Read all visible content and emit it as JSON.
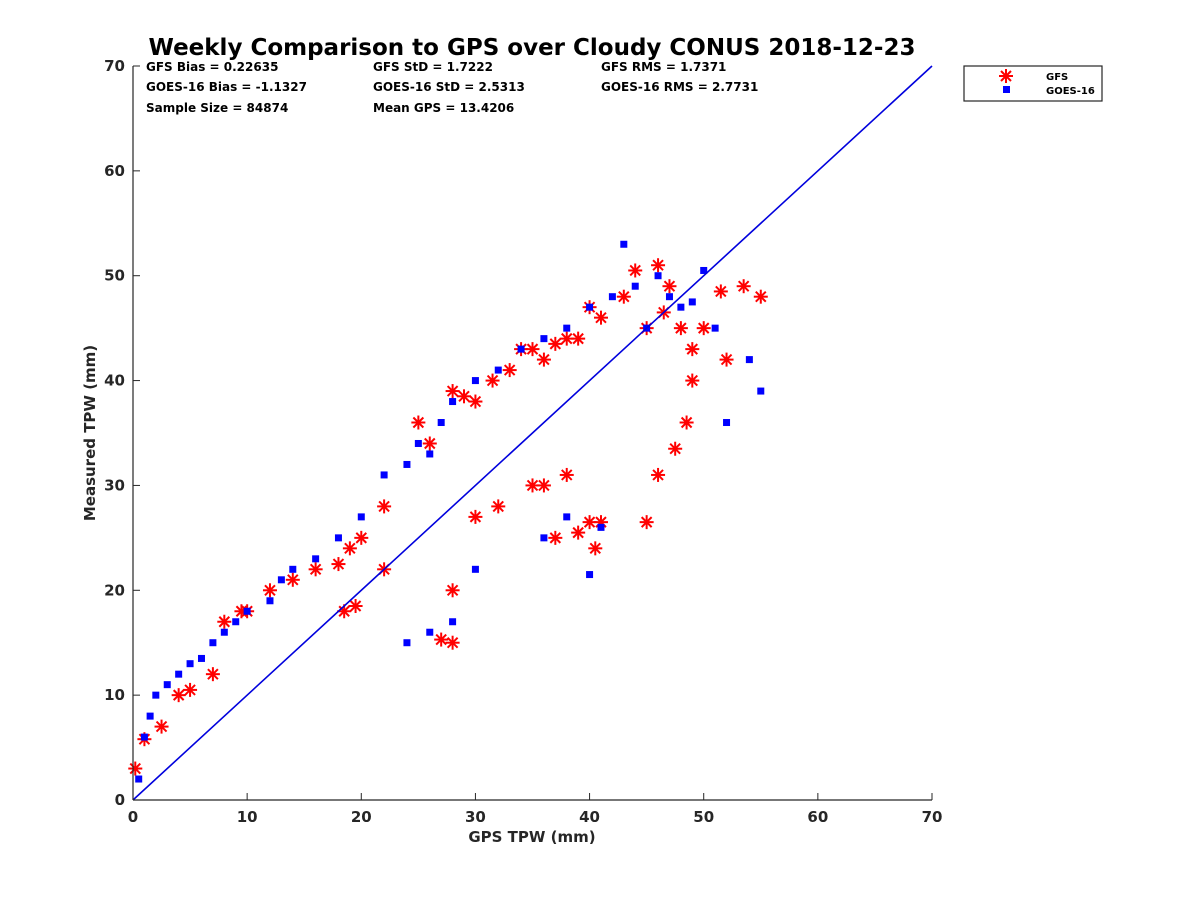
{
  "chart_data": {
    "type": "scatter",
    "title": "Weekly Comparison to GPS over Cloudy CONUS 2018-12-23",
    "xlabel": "GPS TPW (mm)",
    "ylabel": "Measured TPW (mm)",
    "xlim": [
      0,
      70
    ],
    "ylim": [
      0,
      70
    ],
    "xticks": [
      "0",
      "10",
      "20",
      "30",
      "40",
      "50",
      "60",
      "70"
    ],
    "yticks": [
      "0",
      "10",
      "20",
      "30",
      "40",
      "50",
      "60",
      "70"
    ],
    "grid": false,
    "legend_position": "outside-top-right",
    "stats": [
      "GFS Bias = 0.22635",
      "GFS StD = 1.7222",
      "GFS RMS = 1.7371",
      "GOES-16 Bias = -1.1327",
      "GOES-16 StD = 2.5313",
      "GOES-16 RMS = 2.7731",
      "Sample Size = 84874",
      "Mean GPS = 13.4206"
    ],
    "reference_line": {
      "x": [
        0,
        70
      ],
      "y": [
        0,
        70
      ],
      "color": "#0000dd"
    },
    "series": [
      {
        "name": "GFS",
        "marker": "asterisk",
        "color": "#ff0000",
        "x": [
          0.2,
          1,
          2.5,
          4,
          5,
          7,
          8,
          9.5,
          10,
          12,
          14,
          16,
          18,
          19,
          20,
          22,
          25,
          26,
          28,
          29,
          30,
          31.5,
          33,
          34,
          35,
          36,
          37,
          38,
          39,
          40,
          41,
          43,
          44,
          45,
          46,
          46.5,
          47,
          48,
          49,
          50,
          51.5,
          52,
          53.5,
          55,
          40.5,
          41,
          45,
          46,
          47.5,
          48.5,
          49,
          28,
          27,
          37,
          39,
          40,
          18.5,
          19.5,
          22,
          28,
          30,
          32,
          35,
          36,
          38
        ],
        "y": [
          3,
          5.8,
          7,
          10,
          10.5,
          12,
          17,
          18,
          18,
          20,
          21,
          22,
          22.5,
          24,
          25,
          28,
          36,
          34,
          39,
          38.5,
          38,
          40,
          41,
          43,
          43,
          42,
          43.5,
          44,
          44,
          47,
          46,
          48,
          50.5,
          45,
          51,
          46.5,
          49,
          45,
          43,
          45,
          48.5,
          42,
          49,
          48,
          24,
          26.5,
          26.5,
          31,
          33.5,
          36,
          40,
          15,
          15.3,
          25,
          25.5,
          26.5,
          18,
          18.5,
          22,
          20,
          27,
          28,
          30,
          30,
          31
        ]
      },
      {
        "name": "GOES-16",
        "marker": "square",
        "color": "#0000ff",
        "x": [
          0.5,
          1,
          1.5,
          2,
          3,
          4,
          5,
          6,
          7,
          8,
          9,
          10,
          12,
          13,
          14,
          16,
          18,
          20,
          22,
          24,
          25,
          26,
          27,
          28,
          30,
          32,
          34,
          36,
          38,
          40,
          42,
          43,
          44,
          45,
          46,
          47,
          48,
          49,
          50,
          51,
          52,
          54,
          55,
          40,
          41,
          38,
          36,
          30,
          28,
          26,
          24
        ],
        "y": [
          2,
          6,
          8,
          10,
          11,
          12,
          13,
          13.5,
          15,
          16,
          17,
          18,
          19,
          21,
          22,
          23,
          25,
          27,
          31,
          32,
          34,
          33,
          36,
          38,
          40,
          41,
          43,
          44,
          45,
          47,
          48,
          53,
          49,
          45,
          50,
          48,
          47,
          47.5,
          50.5,
          45,
          36,
          42,
          39,
          21.5,
          26,
          27,
          25,
          22,
          17,
          16,
          15
        ]
      }
    ]
  }
}
